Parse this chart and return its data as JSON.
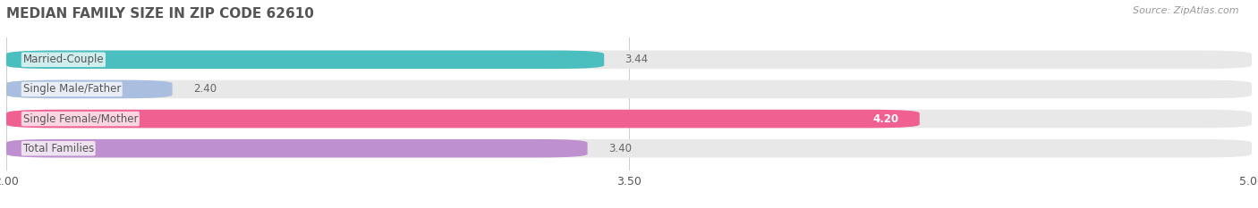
{
  "title": "MEDIAN FAMILY SIZE IN ZIP CODE 62610",
  "source": "Source: ZipAtlas.com",
  "categories": [
    "Married-Couple",
    "Single Male/Father",
    "Single Female/Mother",
    "Total Families"
  ],
  "values": [
    3.44,
    2.4,
    4.2,
    3.4
  ],
  "bar_colors": [
    "#4BBFBF",
    "#AABFDF",
    "#F06090",
    "#BF90CF"
  ],
  "bar_bg_color": "#E8E8E8",
  "xlim": [
    2.0,
    5.0
  ],
  "xticks": [
    2.0,
    3.5,
    5.0
  ],
  "xtick_labels": [
    "2.00",
    "3.50",
    "5.00"
  ],
  "value_label_dark_color": "#666666",
  "value_label_light_color": "#FFFFFF",
  "label_color": "#555555",
  "title_color": "#555555",
  "source_color": "#999999",
  "background_color": "#FFFFFF",
  "bar_height": 0.62,
  "value_inside_bar": [
    false,
    false,
    true,
    false
  ],
  "grid_color": "#CCCCCC"
}
